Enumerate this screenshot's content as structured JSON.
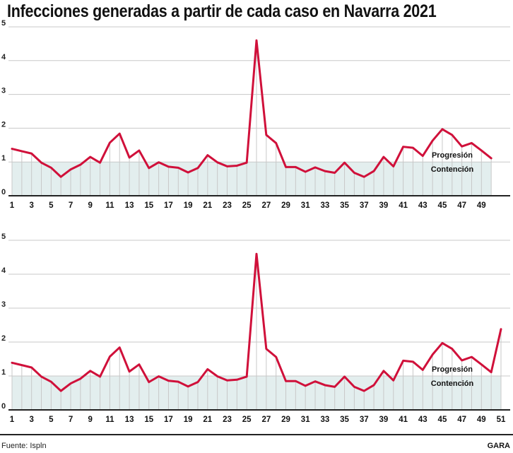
{
  "title": "Infecciones generadas a partir de cada caso en Navarra 2021",
  "source": "Fuente: Ispln",
  "brand": "GARA",
  "colors": {
    "line": "#d0103a",
    "contention_band": "#e3eeee",
    "drop_lines": "#c8c8c8",
    "grid": "#c8c8c8"
  },
  "chart_data": [
    {
      "type": "line",
      "title": "",
      "xlabel": "",
      "ylabel": "",
      "ylim": [
        0,
        5
      ],
      "yticks": [
        0,
        1,
        2,
        3,
        4,
        5
      ],
      "xticks": [
        1,
        3,
        5,
        7,
        9,
        11,
        13,
        15,
        17,
        19,
        21,
        23,
        25,
        27,
        29,
        31,
        33,
        35,
        37,
        39,
        41,
        43,
        45,
        47,
        49
      ],
      "grid": true,
      "band": {
        "from": 0,
        "to": 1,
        "label_above": "Progresión",
        "label_below": "Contención"
      },
      "x": [
        1,
        2,
        3,
        4,
        5,
        6,
        7,
        8,
        9,
        10,
        11,
        12,
        13,
        14,
        15,
        16,
        17,
        18,
        19,
        20,
        21,
        22,
        23,
        24,
        25,
        26,
        27,
        28,
        29,
        30,
        31,
        32,
        33,
        34,
        35,
        36,
        37,
        38,
        39,
        40,
        41,
        42,
        43,
        44,
        45,
        46,
        47,
        48,
        49,
        50
      ],
      "values": [
        1.39,
        1.32,
        1.25,
        0.98,
        0.83,
        0.56,
        0.78,
        0.92,
        1.15,
        0.98,
        1.57,
        1.84,
        1.13,
        1.34,
        0.82,
        0.99,
        0.86,
        0.83,
        0.69,
        0.82,
        1.2,
        0.99,
        0.87,
        0.89,
        0.98,
        4.6,
        1.8,
        1.56,
        0.85,
        0.85,
        0.71,
        0.84,
        0.73,
        0.68,
        0.98,
        0.68,
        0.56,
        0.73,
        1.15,
        0.87,
        1.45,
        1.42,
        1.18,
        1.63,
        1.97,
        1.8,
        1.46,
        1.56,
        1.34,
        1.11
      ]
    },
    {
      "type": "line",
      "title": "",
      "xlabel": "",
      "ylabel": "",
      "ylim": [
        0,
        5
      ],
      "yticks": [
        0,
        1,
        2,
        3,
        4,
        5
      ],
      "xticks": [
        1,
        3,
        5,
        7,
        9,
        11,
        13,
        15,
        17,
        19,
        21,
        23,
        25,
        27,
        29,
        31,
        33,
        35,
        37,
        39,
        41,
        43,
        45,
        47,
        49,
        51
      ],
      "grid": true,
      "band": {
        "from": 0,
        "to": 1,
        "label_above": "Progresión",
        "label_below": "Contención"
      },
      "x": [
        1,
        2,
        3,
        4,
        5,
        6,
        7,
        8,
        9,
        10,
        11,
        12,
        13,
        14,
        15,
        16,
        17,
        18,
        19,
        20,
        21,
        22,
        23,
        24,
        25,
        26,
        27,
        28,
        29,
        30,
        31,
        32,
        33,
        34,
        35,
        36,
        37,
        38,
        39,
        40,
        41,
        42,
        43,
        44,
        45,
        46,
        47,
        48,
        49,
        50,
        51
      ],
      "values": [
        1.39,
        1.32,
        1.25,
        0.98,
        0.83,
        0.56,
        0.78,
        0.92,
        1.15,
        0.98,
        1.57,
        1.84,
        1.13,
        1.34,
        0.82,
        0.99,
        0.86,
        0.83,
        0.69,
        0.82,
        1.2,
        0.99,
        0.87,
        0.89,
        0.98,
        4.6,
        1.8,
        1.56,
        0.85,
        0.85,
        0.71,
        0.84,
        0.73,
        0.68,
        0.98,
        0.68,
        0.56,
        0.73,
        1.15,
        0.87,
        1.45,
        1.42,
        1.18,
        1.63,
        1.97,
        1.8,
        1.46,
        1.56,
        1.34,
        1.11,
        2.38
      ]
    }
  ]
}
